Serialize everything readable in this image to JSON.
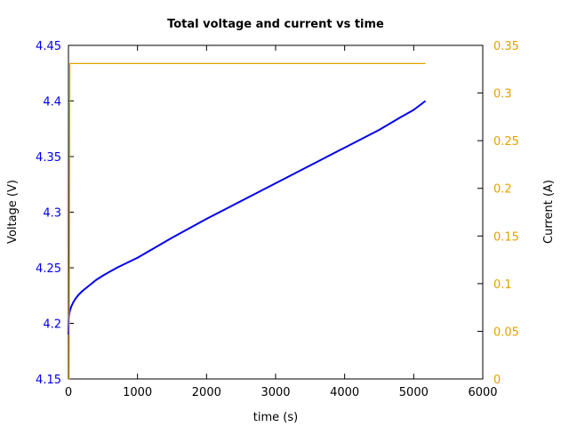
{
  "chart_data": {
    "type": "line",
    "title": "Total voltage and current vs time",
    "xlabel": "time (s)",
    "ylabel_left": "Voltage (V)",
    "ylabel_right": "Current (A)",
    "xlim": [
      0,
      6000
    ],
    "ylim_left": [
      4.15,
      4.45
    ],
    "ylim_right": [
      0,
      0.35
    ],
    "x_ticks": [
      "0",
      "1000",
      "2000",
      "3000",
      "4000",
      "5000",
      "6000"
    ],
    "y_left_ticks": [
      "4.15",
      "4.2",
      "4.25",
      "4.3",
      "4.35",
      "4.4",
      "4.45"
    ],
    "y_right_ticks": [
      "0",
      "0.05",
      "0.1",
      "0.15",
      "0.2",
      "0.25",
      "0.3",
      "0.35"
    ],
    "grid": false,
    "colors": {
      "voltage": "#0000ee",
      "current": "#e3a100",
      "left_axis": "#0000ee",
      "right_axis": "#e3a100"
    },
    "series": [
      {
        "axis": "left",
        "x": [
          0,
          5,
          10,
          20,
          40,
          70,
          100,
          150,
          200,
          300,
          400,
          500,
          700,
          1000,
          1500,
          2000,
          2500,
          3000,
          3500,
          4000,
          4500,
          4800,
          5000,
          5170
        ],
        "y": [
          4.19,
          4.203,
          4.207,
          4.211,
          4.215,
          4.219,
          4.222,
          4.226,
          4.229,
          4.234,
          4.239,
          4.243,
          4.25,
          4.259,
          4.277,
          4.294,
          4.31,
          4.326,
          4.342,
          4.358,
          4.374,
          4.385,
          4.392,
          4.4
        ]
      },
      {
        "axis": "right",
        "x": [
          0,
          10,
          20,
          5170
        ],
        "y": [
          0.0,
          0.0,
          0.331,
          0.331
        ]
      }
    ]
  }
}
